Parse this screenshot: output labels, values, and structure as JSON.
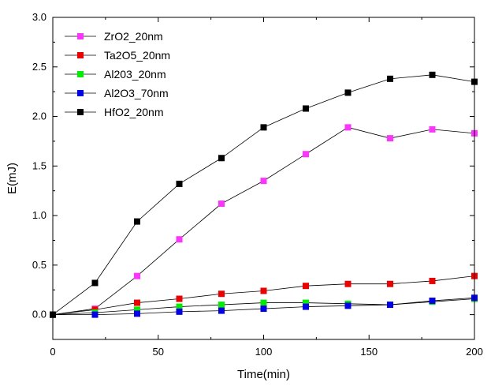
{
  "chart_data": {
    "type": "line",
    "xlabel": "Time(min)",
    "ylabel": "E(mJ)",
    "xlim": [
      0,
      200
    ],
    "ylim": [
      -0.25,
      3.0
    ],
    "x_ticks": [
      0,
      50,
      100,
      150,
      200
    ],
    "y_ticks": [
      0.0,
      0.5,
      1.0,
      1.5,
      2.0,
      2.5,
      3.0
    ],
    "x_tick_labels": [
      "0",
      "50",
      "100",
      "150",
      "200"
    ],
    "y_tick_labels": [
      "0.0",
      "0.5",
      "1.0",
      "1.5",
      "2.0",
      "2.5",
      "3.0"
    ],
    "grid": false,
    "legend_position": "top-left",
    "x": [
      0,
      20,
      40,
      60,
      80,
      100,
      120,
      140,
      160,
      180,
      200
    ],
    "series": [
      {
        "name": "ZrO2_20nm",
        "color": "#ff33ff",
        "values": [
          0,
          0.06,
          0.39,
          0.76,
          1.12,
          1.35,
          1.62,
          1.89,
          1.78,
          1.87,
          1.83
        ]
      },
      {
        "name": "Ta2O5_20nm",
        "color": "#ee0000",
        "values": [
          0,
          0.05,
          0.12,
          0.16,
          0.21,
          0.24,
          0.29,
          0.31,
          0.31,
          0.34,
          0.39
        ]
      },
      {
        "name": "Al203_20nm",
        "color": "#00ee00",
        "values": [
          0,
          0.02,
          0.05,
          0.08,
          0.1,
          0.12,
          0.12,
          0.11,
          0.1,
          0.13,
          0.16
        ]
      },
      {
        "name": "Al2O3_70nm",
        "color": "#0000ee",
        "values": [
          0,
          0.0,
          0.01,
          0.03,
          0.04,
          0.06,
          0.08,
          0.09,
          0.1,
          0.14,
          0.17
        ]
      },
      {
        "name": "HfO2_20nm",
        "color": "#000000",
        "values": [
          0,
          0.32,
          0.94,
          1.32,
          1.58,
          1.89,
          2.08,
          2.24,
          2.38,
          2.42,
          2.35
        ]
      }
    ]
  }
}
